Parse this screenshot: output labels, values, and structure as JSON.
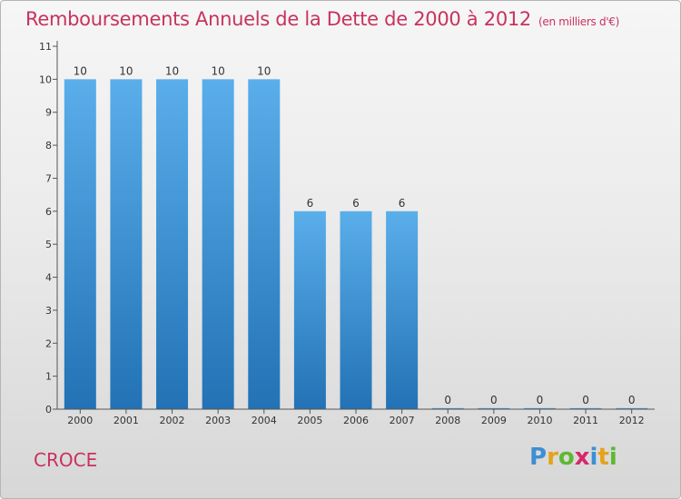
{
  "header": {
    "title": "Remboursements Annuels de la Dette de 2000 à 2012",
    "unit": "(en milliers d'€)"
  },
  "footer": {
    "commune": "CROCE",
    "logo_letters": [
      "P",
      "r",
      "o",
      "x",
      "i",
      "t",
      "i"
    ],
    "logo_colors": [
      "#3d8fd4",
      "#e5a21c",
      "#5db833",
      "#d6286b",
      "#3d8fd4",
      "#e5a21c",
      "#5db833"
    ]
  },
  "chart_data": {
    "type": "bar",
    "title": "Remboursements Annuels de la Dette de 2000 à 2012",
    "subtitle": "(en milliers d'€)",
    "categories": [
      "2000",
      "2001",
      "2002",
      "2003",
      "2004",
      "2005",
      "2006",
      "2007",
      "2008",
      "2009",
      "2010",
      "2011",
      "2012"
    ],
    "values": [
      10,
      10,
      10,
      10,
      10,
      6,
      6,
      6,
      0,
      0,
      0,
      0,
      0
    ],
    "ylim": [
      0,
      11
    ],
    "yticks": [
      0,
      1,
      2,
      3,
      4,
      5,
      6,
      7,
      8,
      9,
      10,
      11
    ],
    "grid": false,
    "bar_color_top": "#5aaeea",
    "bar_color_bottom": "#2272b5",
    "title_color": "#c8325e"
  }
}
